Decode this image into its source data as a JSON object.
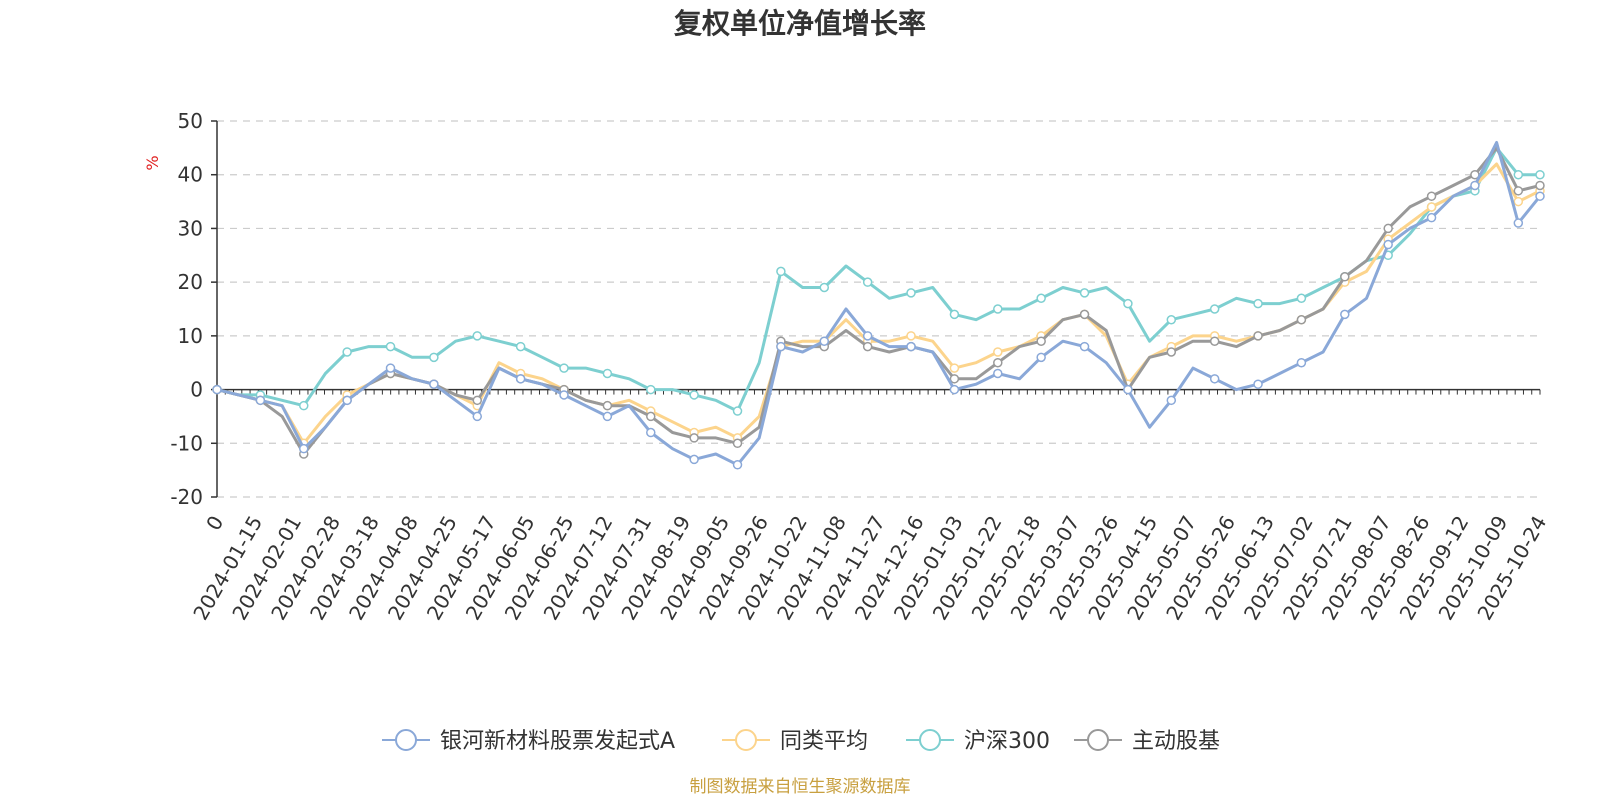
{
  "chart_data": {
    "type": "line",
    "title": "复权单位净值增长率",
    "ylabel": "%",
    "ylim": [
      -20,
      50
    ],
    "yticks": [
      -20,
      -10,
      0,
      10,
      20,
      30,
      40,
      50
    ],
    "grid": true,
    "legend_position": "bottom",
    "source": "制图数据来自恒生聚源数据库",
    "xtick_labels": [
      "0",
      "2024-01-15",
      "2024-02-01",
      "2024-02-28",
      "2024-03-18",
      "2024-04-08",
      "2024-04-25",
      "2024-05-17",
      "2024-06-05",
      "2024-06-25",
      "2024-07-12",
      "2024-07-31",
      "2024-08-19",
      "2024-09-05",
      "2024-09-26",
      "2024-10-22",
      "2024-11-08",
      "2024-11-27",
      "2024-12-16",
      "2025-01-03",
      "2025-01-22",
      "2025-02-18",
      "2025-03-07",
      "2025-03-26",
      "2025-04-15",
      "2025-05-07",
      "2025-05-26",
      "2025-06-13",
      "2025-07-02",
      "2025-07-21",
      "2025-08-07",
      "2025-08-26",
      "2025-09-12",
      "2025-10-09",
      "2025-10-24"
    ],
    "series": [
      {
        "name": "银河新材料股票发起式A",
        "color": "#8aa8d8",
        "values": [
          0,
          -1,
          -2,
          -3,
          -11,
          -7,
          -2,
          1,
          4,
          2,
          1,
          -2,
          -5,
          4,
          2,
          1,
          -1,
          -3,
          -5,
          -3,
          -8,
          -11,
          -13,
          -12,
          -14,
          -9,
          8,
          7,
          9,
          15,
          10,
          8,
          8,
          7,
          0,
          1,
          3,
          2,
          6,
          9,
          8,
          5,
          0,
          -7,
          -2,
          4,
          2,
          0,
          1,
          3,
          5,
          7,
          14,
          17,
          27,
          30,
          32,
          36,
          38,
          46,
          31,
          36
        ]
      },
      {
        "name": "同类平均",
        "color": "#fcd48c",
        "values": [
          0,
          -1,
          -2,
          -3,
          -10,
          -5,
          -1,
          1,
          3,
          2,
          1,
          -1,
          -3,
          5,
          3,
          2,
          0,
          -2,
          -3,
          -2,
          -4,
          -6,
          -8,
          -7,
          -9,
          -5,
          8,
          9,
          9,
          13,
          9,
          9,
          10,
          9,
          4,
          5,
          7,
          8,
          10,
          13,
          14,
          10,
          1,
          6,
          8,
          10,
          10,
          9,
          10,
          11,
          13,
          15,
          20,
          22,
          28,
          31,
          34,
          36,
          38,
          42,
          35,
          37
        ]
      },
      {
        "name": "沪深300",
        "color": "#7dcfd0",
        "values": [
          0,
          -1,
          -1,
          -2,
          -3,
          3,
          7,
          8,
          8,
          6,
          6,
          9,
          10,
          9,
          8,
          6,
          4,
          4,
          3,
          2,
          0,
          0,
          -1,
          -2,
          -4,
          5,
          22,
          19,
          19,
          23,
          20,
          17,
          18,
          19,
          14,
          13,
          15,
          15,
          17,
          19,
          18,
          19,
          16,
          9,
          13,
          14,
          15,
          17,
          16,
          16,
          17,
          19,
          21,
          24,
          25,
          29,
          34,
          36,
          37,
          45,
          40,
          40
        ]
      },
      {
        "name": "主动股基",
        "color": "#999999",
        "values": [
          0,
          -1,
          -2,
          -5,
          -12,
          -7,
          -2,
          1,
          3,
          2,
          1,
          -1,
          -2,
          4,
          2,
          1,
          0,
          -2,
          -3,
          -3,
          -5,
          -8,
          -9,
          -9,
          -10,
          -7,
          9,
          8,
          8,
          11,
          8,
          7,
          8,
          7,
          2,
          2,
          5,
          8,
          9,
          13,
          14,
          11,
          0,
          6,
          7,
          9,
          9,
          8,
          10,
          11,
          13,
          15,
          21,
          24,
          30,
          34,
          36,
          38,
          40,
          45,
          37,
          38
        ]
      }
    ]
  }
}
